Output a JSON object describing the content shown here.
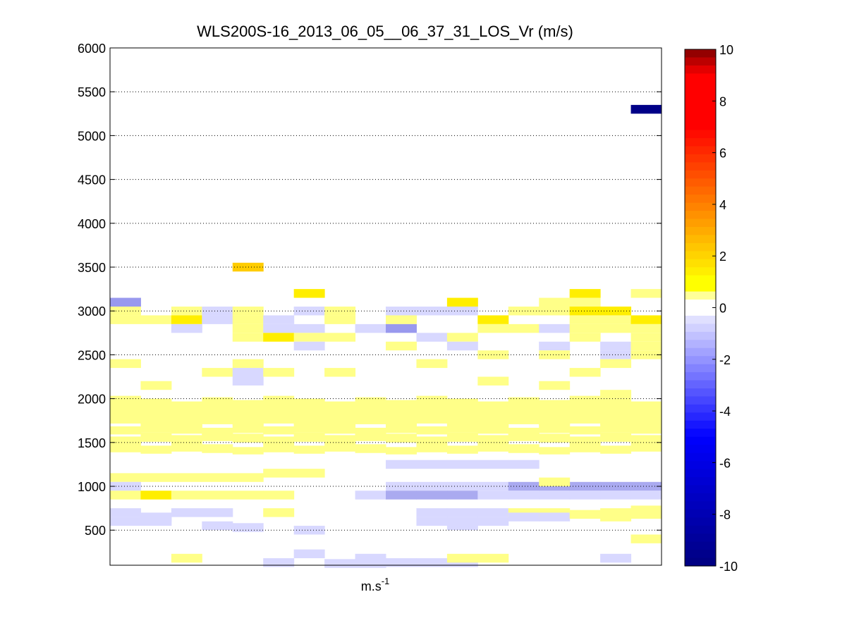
{
  "chart_data": {
    "type": "heatmap",
    "title": "WLS200S-16_2013_06_05__06_37_31_LOS_Vr (m/s)",
    "xlabel": "m.s",
    "xlabel_sup": "-1",
    "ylabel": "",
    "ylim": [
      100,
      6000
    ],
    "yticks": [
      500,
      1000,
      1500,
      2000,
      2500,
      3000,
      3500,
      4000,
      4500,
      5000,
      5500,
      6000
    ],
    "grid": "dotted horizontal lines at y ticks",
    "n_columns": 18,
    "range_gate_m": 100,
    "colorbar": {
      "min": -10,
      "max": 10,
      "ticks": [
        -10,
        -8,
        -6,
        -4,
        -2,
        0,
        2,
        4,
        6,
        8,
        10
      ],
      "colormap": "jet-like diverging, white near zero, light blue for negative, yellow/red for positive"
    },
    "cells": [
      {
        "col": 17,
        "y": 5300,
        "v": -10
      },
      {
        "col": 4,
        "y": 3500,
        "v": 1.8
      },
      {
        "col": 6,
        "y": 3200,
        "v": 1.3
      },
      {
        "col": 11,
        "y": 3100,
        "v": 1.2
      },
      {
        "col": 15,
        "y": 3200,
        "v": 1.3
      },
      {
        "col": 17,
        "y": 3200,
        "v": 0.6
      },
      {
        "col": 0,
        "y": 3100,
        "v": -1.0
      },
      {
        "col": 0,
        "y": 3000,
        "v": 0.6
      },
      {
        "col": 0,
        "y": 2900,
        "v": 0.6
      },
      {
        "col": 1,
        "y": 2900,
        "v": 0.6
      },
      {
        "col": 2,
        "y": 3000,
        "v": 0.6
      },
      {
        "col": 2,
        "y": 2900,
        "v": 1.2
      },
      {
        "col": 2,
        "y": 2800,
        "v": -0.5
      },
      {
        "col": 3,
        "y": 2900,
        "v": -0.4
      },
      {
        "col": 3,
        "y": 3000,
        "v": -0.4
      },
      {
        "col": 4,
        "y": 3000,
        "v": 0.6
      },
      {
        "col": 4,
        "y": 2900,
        "v": 0.6
      },
      {
        "col": 4,
        "y": 2800,
        "v": 0.6
      },
      {
        "col": 4,
        "y": 2700,
        "v": 0.6
      },
      {
        "col": 5,
        "y": 2900,
        "v": -0.4
      },
      {
        "col": 5,
        "y": 2800,
        "v": -0.4
      },
      {
        "col": 5,
        "y": 2700,
        "v": 1.2
      },
      {
        "col": 6,
        "y": 3000,
        "v": -0.4
      },
      {
        "col": 6,
        "y": 2800,
        "v": -0.5
      },
      {
        "col": 6,
        "y": 2700,
        "v": 0.6
      },
      {
        "col": 6,
        "y": 2600,
        "v": -0.4
      },
      {
        "col": 7,
        "y": 3000,
        "v": 0.6
      },
      {
        "col": 7,
        "y": 2900,
        "v": 0.6
      },
      {
        "col": 7,
        "y": 2700,
        "v": 0.6
      },
      {
        "col": 8,
        "y": 2800,
        "v": -0.4
      },
      {
        "col": 9,
        "y": 3000,
        "v": -0.4
      },
      {
        "col": 9,
        "y": 2900,
        "v": 0.6
      },
      {
        "col": 9,
        "y": 2800,
        "v": -1.2
      },
      {
        "col": 9,
        "y": 2600,
        "v": 0.6
      },
      {
        "col": 10,
        "y": 3000,
        "v": -0.4
      },
      {
        "col": 10,
        "y": 2700,
        "v": -0.4
      },
      {
        "col": 11,
        "y": 3000,
        "v": -0.4
      },
      {
        "col": 11,
        "y": 2700,
        "v": 0.6
      },
      {
        "col": 11,
        "y": 2600,
        "v": -0.4
      },
      {
        "col": 12,
        "y": 2900,
        "v": 1.2
      },
      {
        "col": 12,
        "y": 2800,
        "v": 0.6
      },
      {
        "col": 12,
        "y": 2500,
        "v": 0.6
      },
      {
        "col": 13,
        "y": 3000,
        "v": 0.6
      },
      {
        "col": 13,
        "y": 2800,
        "v": 0.6
      },
      {
        "col": 14,
        "y": 3100,
        "v": 0.6
      },
      {
        "col": 14,
        "y": 3000,
        "v": 0.6
      },
      {
        "col": 14,
        "y": 2800,
        "v": -0.4
      },
      {
        "col": 14,
        "y": 2600,
        "v": -0.5
      },
      {
        "col": 14,
        "y": 2500,
        "v": 0.6
      },
      {
        "col": 15,
        "y": 3100,
        "v": 0.6
      },
      {
        "col": 15,
        "y": 3000,
        "v": 1.2
      },
      {
        "col": 15,
        "y": 2900,
        "v": 0.6
      },
      {
        "col": 15,
        "y": 2800,
        "v": 0.6
      },
      {
        "col": 15,
        "y": 2700,
        "v": 0.6
      },
      {
        "col": 16,
        "y": 3000,
        "v": 1.3
      },
      {
        "col": 16,
        "y": 2900,
        "v": 0.6
      },
      {
        "col": 16,
        "y": 2800,
        "v": 0.6
      },
      {
        "col": 16,
        "y": 2600,
        "v": -0.4
      },
      {
        "col": 16,
        "y": 2500,
        "v": -0.4
      },
      {
        "col": 16,
        "y": 2400,
        "v": 0.6
      },
      {
        "col": 17,
        "y": 2900,
        "v": 1.2
      },
      {
        "col": 17,
        "y": 2800,
        "v": 0.6
      },
      {
        "col": 17,
        "y": 2700,
        "v": 0.6
      },
      {
        "col": 17,
        "y": 2600,
        "v": 0.6
      },
      {
        "col": 17,
        "y": 2500,
        "v": 0.6
      },
      {
        "col": 0,
        "y": 2400,
        "v": 0.6
      },
      {
        "col": 1,
        "y": 2150,
        "v": 0.6
      },
      {
        "col": 3,
        "y": 2300,
        "v": 0.6
      },
      {
        "col": 4,
        "y": 2400,
        "v": 0.6
      },
      {
        "col": 4,
        "y": 2300,
        "v": -0.4
      },
      {
        "col": 4,
        "y": 2200,
        "v": -0.4
      },
      {
        "col": 5,
        "y": 2300,
        "v": 0.6
      },
      {
        "col": 7,
        "y": 2300,
        "v": 0.6
      },
      {
        "col": 10,
        "y": 2400,
        "v": 0.6
      },
      {
        "col": 12,
        "y": 2200,
        "v": 0.6
      },
      {
        "col": 14,
        "y": 2150,
        "v": 0.6
      },
      {
        "col": 15,
        "y": 2300,
        "v": 0.6
      },
      {
        "col": 16,
        "y": 2050,
        "v": 0.6
      },
      {
        "col": 17,
        "y": 1700,
        "v": 0.6
      },
      {
        "col": 0,
        "y": 1100,
        "v": 0.6
      },
      {
        "col": 1,
        "y": 1100,
        "v": 0.6
      },
      {
        "col": 0,
        "y": 1000,
        "v": -0.4
      },
      {
        "col": 0,
        "y": 900,
        "v": 0.6
      },
      {
        "col": 1,
        "y": 900,
        "v": 1.2
      },
      {
        "col": 2,
        "y": 900,
        "v": 0.6
      },
      {
        "col": 3,
        "y": 900,
        "v": 0.6
      },
      {
        "col": 4,
        "y": 900,
        "v": 0.6
      },
      {
        "col": 5,
        "y": 900,
        "v": 0.6
      },
      {
        "col": 2,
        "y": 1100,
        "v": 0.6
      },
      {
        "col": 3,
        "y": 1100,
        "v": 0.6
      },
      {
        "col": 4,
        "y": 1100,
        "v": 0.6
      },
      {
        "col": 5,
        "y": 1150,
        "v": 0.6
      },
      {
        "col": 6,
        "y": 1150,
        "v": 0.6
      },
      {
        "col": 8,
        "y": 900,
        "v": -0.4
      },
      {
        "col": 9,
        "y": 1000,
        "v": -0.4
      },
      {
        "col": 9,
        "y": 900,
        "v": -0.6
      },
      {
        "col": 10,
        "y": 1000,
        "v": -0.5
      },
      {
        "col": 10,
        "y": 900,
        "v": -0.6
      },
      {
        "col": 11,
        "y": 1000,
        "v": -0.5
      },
      {
        "col": 11,
        "y": 900,
        "v": -0.6
      },
      {
        "col": 12,
        "y": 1000,
        "v": -0.5
      },
      {
        "col": 12,
        "y": 900,
        "v": -0.5
      },
      {
        "col": 13,
        "y": 1000,
        "v": -0.8
      },
      {
        "col": 13,
        "y": 900,
        "v": -0.5
      },
      {
        "col": 14,
        "y": 1000,
        "v": -0.8
      },
      {
        "col": 14,
        "y": 900,
        "v": -0.5
      },
      {
        "col": 15,
        "y": 1000,
        "v": -0.9
      },
      {
        "col": 15,
        "y": 900,
        "v": -0.5
      },
      {
        "col": 16,
        "y": 1000,
        "v": -0.9
      },
      {
        "col": 16,
        "y": 900,
        "v": -0.5
      },
      {
        "col": 17,
        "y": 1000,
        "v": -0.9
      },
      {
        "col": 17,
        "y": 900,
        "v": -0.5
      },
      {
        "col": 9,
        "y": 1250,
        "v": -0.4
      },
      {
        "col": 10,
        "y": 1250,
        "v": -0.4
      },
      {
        "col": 11,
        "y": 1250,
        "v": -0.4
      },
      {
        "col": 12,
        "y": 1250,
        "v": -0.4
      },
      {
        "col": 13,
        "y": 1250,
        "v": -0.4
      },
      {
        "col": 14,
        "y": 1050,
        "v": 0.6
      },
      {
        "col": 0,
        "y": 700,
        "v": -0.4
      },
      {
        "col": 0,
        "y": 600,
        "v": -0.4
      },
      {
        "col": 1,
        "y": 650,
        "v": -0.4
      },
      {
        "col": 1,
        "y": 600,
        "v": -0.4
      },
      {
        "col": 2,
        "y": 700,
        "v": -0.4
      },
      {
        "col": 3,
        "y": 700,
        "v": -0.4
      },
      {
        "col": 3,
        "y": 550,
        "v": -0.4
      },
      {
        "col": 4,
        "y": 530,
        "v": -0.4
      },
      {
        "col": 5,
        "y": 700,
        "v": 0.6
      },
      {
        "col": 6,
        "y": 500,
        "v": -0.4
      },
      {
        "col": 10,
        "y": 700,
        "v": -0.4
      },
      {
        "col": 10,
        "y": 600,
        "v": -0.4
      },
      {
        "col": 11,
        "y": 700,
        "v": -0.4
      },
      {
        "col": 11,
        "y": 600,
        "v": -0.4
      },
      {
        "col": 11,
        "y": 550,
        "v": -0.4
      },
      {
        "col": 12,
        "y": 700,
        "v": -0.4
      },
      {
        "col": 12,
        "y": 600,
        "v": -0.4
      },
      {
        "col": 13,
        "y": 700,
        "v": 0.6
      },
      {
        "col": 13,
        "y": 650,
        "v": -0.4
      },
      {
        "col": 14,
        "y": 700,
        "v": 0.6
      },
      {
        "col": 14,
        "y": 650,
        "v": -0.4
      },
      {
        "col": 15,
        "y": 680,
        "v": 0.6
      },
      {
        "col": 16,
        "y": 700,
        "v": 0.6
      },
      {
        "col": 16,
        "y": 650,
        "v": 0.6
      },
      {
        "col": 17,
        "y": 730,
        "v": 0.6
      },
      {
        "col": 17,
        "y": 680,
        "v": 0.6
      },
      {
        "col": 17,
        "y": 400,
        "v": 0.6
      },
      {
        "col": 2,
        "y": 180,
        "v": 0.6
      },
      {
        "col": 5,
        "y": 130,
        "v": -0.4
      },
      {
        "col": 6,
        "y": 230,
        "v": -0.4
      },
      {
        "col": 7,
        "y": 120,
        "v": -0.4
      },
      {
        "col": 8,
        "y": 120,
        "v": -0.4
      },
      {
        "col": 8,
        "y": 180,
        "v": -0.4
      },
      {
        "col": 9,
        "y": 130,
        "v": -0.4
      },
      {
        "col": 10,
        "y": 130,
        "v": -0.4
      },
      {
        "col": 11,
        "y": 130,
        "v": -0.4
      },
      {
        "col": 11,
        "y": 180,
        "v": 0.6
      },
      {
        "col": 12,
        "y": 180,
        "v": 0.6
      },
      {
        "col": 16,
        "y": 180,
        "v": -0.4
      }
    ],
    "bands": [
      {
        "y_from": 1700,
        "y_to": 2000,
        "v": 0.6,
        "cols": "all"
      },
      {
        "y_from": 1600,
        "y_to": 1700,
        "v": 0.6,
        "cols": "all"
      },
      {
        "y_from": 1380,
        "y_to": 1480,
        "v": 0.6,
        "cols": "all"
      },
      {
        "y_from": 1500,
        "y_to": 1600,
        "v": 0.6,
        "cols": "all"
      }
    ]
  }
}
